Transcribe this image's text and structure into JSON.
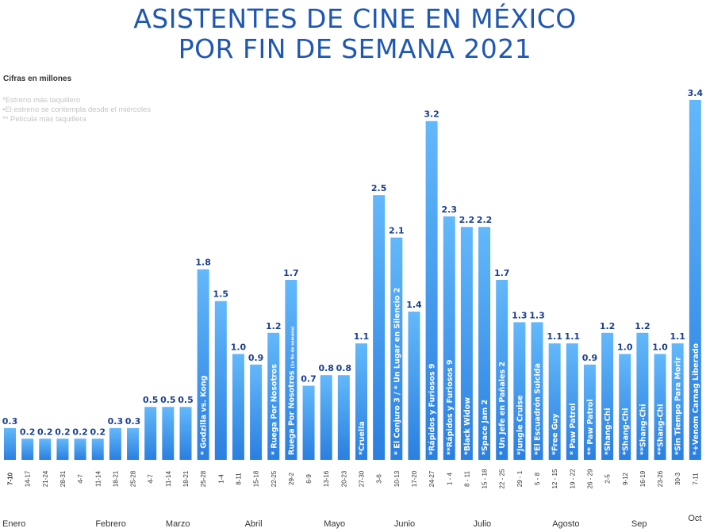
{
  "chart_data": {
    "type": "bar",
    "title_lines": [
      "ASISTENTES DE CINE EN MÉXICO",
      "POR  FIN DE SEMANA 2021"
    ],
    "units_label": "Cifras en millones",
    "notes": [
      "*Estreno más taquillero",
      "•El estreno se contempla desde el miércoles",
      "** Película más taquillera"
    ],
    "categories": [
      "7-10",
      "14-17",
      "21-24",
      "28-31",
      "4-7",
      "11-14",
      "18-21",
      "25-28",
      "4-7",
      "11-14",
      "18-21",
      "25-28",
      "1-4",
      "8-11",
      "15-18",
      "22-25",
      "29-2",
      "6-9",
      "13-16",
      "20-23",
      "27-30",
      "3-6",
      "10-13",
      "17-20",
      "24-27",
      "1 - 4",
      "8 - 11",
      "15 - 18",
      "22 - 25",
      "29 - 1",
      "5 - 8",
      "12 - 15",
      "19 - 22",
      "26 - 29",
      "2-5",
      "9-12",
      "16-19",
      "23-26",
      "30-3",
      "7-11"
    ],
    "values": [
      0.3,
      0.2,
      0.2,
      0.2,
      0.2,
      0.2,
      0.3,
      0.3,
      0.5,
      0.5,
      0.5,
      1.8,
      1.5,
      1.0,
      0.9,
      1.2,
      1.7,
      0.7,
      0.8,
      0.8,
      1.1,
      2.5,
      2.1,
      1.4,
      3.2,
      2.3,
      2.2,
      2.2,
      1.7,
      1.3,
      1.3,
      1.1,
      1.1,
      0.9,
      1.2,
      1.0,
      1.2,
      1.0,
      1.1,
      3.4
    ],
    "value_labels": [
      "0.3",
      "0.2",
      "0.2",
      "0.2",
      "0.2",
      "0.2",
      "0.3",
      "0.3",
      "0.5",
      "0.5",
      "0.5",
      "1.8",
      "1.5",
      "1.0",
      "0.9",
      "1.2",
      "1.7",
      "0.7",
      "0.8",
      "0.8",
      "1.1",
      "2.5",
      "2.1",
      "1.4",
      "3.2",
      "2.3",
      "2.2",
      "2.2",
      "1.7",
      "1.3",
      "1.3",
      "1.1",
      "1.1",
      "0.9",
      "1.2",
      "1.0",
      "1.2",
      "1.0",
      "1.1",
      "3.4"
    ],
    "bar_annotations": [
      {
        "index": 11,
        "text": "* Godzilla vs. Kong"
      },
      {
        "index": 15,
        "text": "* Ruega Por Nosotros"
      },
      {
        "index": 16,
        "text": "Ruega Por Nosotros",
        "small": "(2o fin de semana)"
      },
      {
        "index": 20,
        "text": "*Cruella"
      },
      {
        "index": 22,
        "text": "* El Conjuro 3 /  * Un Lugar en Silencio 2"
      },
      {
        "index": 24,
        "text": "*Rápidos y Furiosos 9"
      },
      {
        "index": 25,
        "text": "**Rápidos y Furiosos 9"
      },
      {
        "index": 26,
        "text": "*Black Widow"
      },
      {
        "index": 27,
        "text": "*Space Jam 2"
      },
      {
        "index": 28,
        "text": "* Un Jefe en Pañales 2"
      },
      {
        "index": 29,
        "text": "*Jungle Cruise"
      },
      {
        "index": 30,
        "text": "*El Escuadrón Suicida"
      },
      {
        "index": 31,
        "text": "*Free Guy"
      },
      {
        "index": 32,
        "text": "* Paw Patrol"
      },
      {
        "index": 33,
        "text": "** Paw Patrol"
      },
      {
        "index": 34,
        "text": "*Shang-Chi"
      },
      {
        "index": 35,
        "text": "*Shang-Chi"
      },
      {
        "index": 36,
        "text": "**Shang-Chi"
      },
      {
        "index": 37,
        "text": "**Shang-Chi"
      },
      {
        "index": 38,
        "text": "*Sin Tiempo Para Morir"
      },
      {
        "index": 39,
        "text": "*+Venom Carnag Liberado"
      }
    ],
    "months": [
      {
        "label": "Enero",
        "first": 0,
        "last": 3
      },
      {
        "label": "Febrero",
        "first": 4,
        "last": 7
      },
      {
        "label": "Marzo",
        "first": 8,
        "last": 11
      },
      {
        "label": "Abril",
        "first": 12,
        "last": 16
      },
      {
        "label": "Mayo",
        "first": 17,
        "last": 20
      },
      {
        "label": "Junio",
        "first": 21,
        "last": 24
      },
      {
        "label": "Julio",
        "first": 25,
        "last": 29
      },
      {
        "label": "Agosto",
        "first": 30,
        "last": 33
      },
      {
        "label": "Sep",
        "first": 34,
        "last": 38
      },
      {
        "label": "Oct",
        "first": 39,
        "last": 39
      }
    ],
    "ylim": [
      0,
      3.4
    ],
    "xlabel": "",
    "ylabel": ""
  },
  "colors": {
    "title": "#1f57b3",
    "bar_top": "#63b8fb",
    "bar_bottom": "#2a7fe0",
    "value_label": "#1b3f8f",
    "annotation": "#ffffff",
    "axis_text": "#333333"
  }
}
